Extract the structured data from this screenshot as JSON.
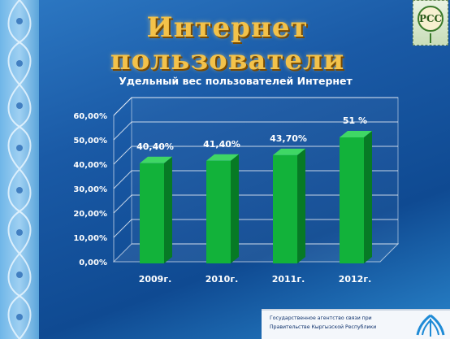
{
  "slide": {
    "title": "Интернет  пользователи",
    "logo_text": "РСС",
    "footer": {
      "line1": "Государственное  агентство  связи  при",
      "line2": "Правительстве   Кыргызской Республики"
    },
    "colors": {
      "background": "#1a5aa6",
      "title": "#f3c24a",
      "bar": "#12b23a"
    }
  },
  "chart_data": {
    "type": "bar",
    "title": "Удельный вес пользователей Интернет",
    "categories": [
      "2009г.",
      "2010г.",
      "2011г.",
      "2012г."
    ],
    "values": [
      40.4,
      41.4,
      43.7,
      51
    ],
    "data_labels": [
      "40,40%",
      "41,40%",
      "43,70%",
      "51 %"
    ],
    "ylim": [
      0,
      60
    ],
    "yticks": [
      0,
      10,
      20,
      30,
      40,
      50,
      60
    ],
    "ytick_labels": [
      "0,00%",
      "10,00%",
      "20,00%",
      "30,00%",
      "40,00%",
      "50,00%",
      "60,00%"
    ],
    "xlabel": "",
    "ylabel": "",
    "grid": true,
    "style": "3d-bar"
  }
}
